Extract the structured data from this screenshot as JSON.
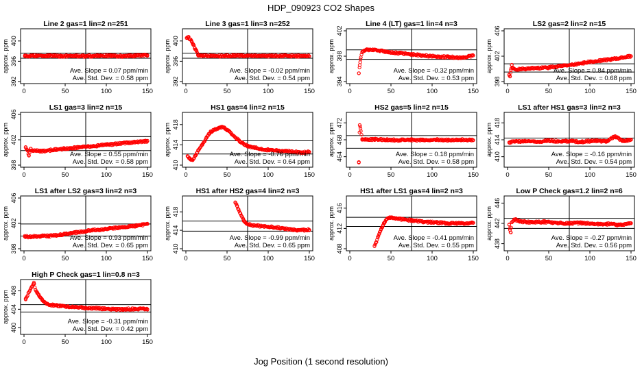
{
  "figure": {
    "title": "HDP_090923  CO2 Shapes",
    "xlabel": "Jog Position (1 second resolution)"
  },
  "chart_data": [
    {
      "type": "scatter",
      "title": "Line 2 gas=1 lin=2 n=251",
      "ylabel": "approx. ppm",
      "xlim": [
        0,
        150
      ],
      "ylim": [
        392,
        402
      ],
      "yticks": [
        392,
        396,
        400
      ],
      "xticks": [
        0,
        50,
        100,
        150
      ],
      "hlines": [
        396.6,
        397.6
      ],
      "vline": 75,
      "slope_text": "Ave. Slope =  0.07  ppm/min",
      "sd_text": "Ave. Std. Dev. =  0.58  ppm",
      "series": [
        {
          "x": [
            1,
            15,
            30,
            45,
            60,
            75,
            90,
            105,
            120,
            135,
            150
          ],
          "y": [
            397.0,
            397.1,
            397.1,
            397.0,
            397.1,
            397.0,
            397.1,
            397.1,
            397.0,
            397.1,
            397.2
          ]
        }
      ]
    },
    {
      "type": "scatter",
      "title": "Line 3 gas=1 lin=3 n=252",
      "ylabel": "approx. ppm",
      "xlim": [
        0,
        150
      ],
      "ylim": [
        392,
        402
      ],
      "yticks": [
        392,
        396,
        400
      ],
      "xticks": [
        0,
        50,
        100,
        150
      ],
      "hlines": [
        396.6,
        397.6
      ],
      "vline": 75,
      "slope_text": "Ave. Slope =  -0.02  ppm/min",
      "sd_text": "Ave. Std. Dev. =  0.54  ppm",
      "series": [
        {
          "x": [
            1,
            3,
            5,
            7,
            9,
            11,
            13,
            15,
            30,
            60,
            90,
            120,
            150
          ],
          "y": [
            400.6,
            400.8,
            400.3,
            399.9,
            399.2,
            398.6,
            398.0,
            397.1,
            397.0,
            397.1,
            397.0,
            397.1,
            397.0
          ]
        }
      ]
    },
    {
      "type": "scatter",
      "title": "Line 4 (LT) gas=1 lin=4 n=3",
      "ylabel": "approx. ppm",
      "xlim": [
        0,
        150
      ],
      "ylim": [
        394,
        402
      ],
      "yticks": [
        394,
        398,
        402
      ],
      "xticks": [
        0,
        50,
        100,
        150
      ],
      "hlines": [
        397.5,
        399.0
      ],
      "vline": 75,
      "slope_text": "Ave. Slope =  -0.32  ppm/min",
      "sd_text": "Ave. Std. Dev. =  0.53  ppm",
      "series": [
        {
          "x": [
            11,
            12,
            13,
            15,
            20,
            30,
            45,
            60,
            75,
            90,
            105,
            120,
            135,
            150
          ],
          "y": [
            395.3,
            396.6,
            397.5,
            398.6,
            399.0,
            399.0,
            398.7,
            398.5,
            398.3,
            398.1,
            397.9,
            397.9,
            397.7,
            398.1
          ]
        }
      ]
    },
    {
      "type": "scatter",
      "title": "LS2 gas=2 lin=2 n=15",
      "ylabel": "approx. ppm",
      "xlim": [
        0,
        150
      ],
      "ylim": [
        398,
        406
      ],
      "yticks": [
        398,
        402,
        406
      ],
      "xticks": [
        0,
        50,
        100,
        150
      ],
      "hlines": [
        399.5,
        400.8
      ],
      "vline": 75,
      "slope_text": "Ave. Slope =  0.84  ppm/min",
      "sd_text": "Ave. Std. Dev. =  0.68  ppm",
      "series": [
        {
          "x": [
            2,
            3,
            4,
            5,
            6,
            10,
            20,
            35,
            50,
            75,
            100,
            125,
            150
          ],
          "y": [
            399.0,
            398.8,
            399.8,
            400.6,
            400.2,
            399.9,
            400.0,
            400.1,
            400.2,
            400.6,
            401.1,
            401.5,
            402.0
          ]
        }
      ]
    },
    {
      "type": "scatter",
      "title": "LS1 gas=3 lin=2 n=15",
      "ylabel": "approx. ppm",
      "xlim": [
        0,
        150
      ],
      "ylim": [
        398,
        406
      ],
      "yticks": [
        398,
        402,
        406
      ],
      "xticks": [
        0,
        50,
        100,
        150
      ],
      "hlines": [
        400.3,
        402.5
      ],
      "vline": 75,
      "slope_text": "Ave. Slope =  0.55  ppm/min",
      "sd_text": "Ave. Std. Dev. =  0.58  ppm",
      "series": [
        {
          "x": [
            2,
            4,
            6,
            8,
            10,
            20,
            35,
            50,
            75,
            100,
            125,
            150
          ],
          "y": [
            400.8,
            400.4,
            399.5,
            400.6,
            400.3,
            400.2,
            400.4,
            400.6,
            400.9,
            401.2,
            401.5,
            401.8
          ]
        }
      ]
    },
    {
      "type": "scatter",
      "title": "HS1 gas=4 lin=2 n=15",
      "ylabel": "approx. ppm",
      "xlim": [
        0,
        150
      ],
      "ylim": [
        410,
        420
      ],
      "yticks": [
        410,
        414,
        418
      ],
      "xticks": [
        0,
        50,
        100,
        150
      ],
      "hlines": [
        412.2,
        414.8
      ],
      "vline": 75,
      "slope_text": "Ave. Slope =  -0.76  ppm/min",
      "sd_text": "Ave. Std. Dev. =  0.64  ppm",
      "series": [
        {
          "x": [
            2,
            5,
            8,
            12,
            15,
            20,
            25,
            30,
            35,
            40,
            45,
            50,
            55,
            60,
            65,
            70,
            75,
            85,
            100,
            120,
            140,
            150
          ],
          "y": [
            411.8,
            411.3,
            411.0,
            412.0,
            413.0,
            414.0,
            415.5,
            416.5,
            417.0,
            417.4,
            417.5,
            417.0,
            416.3,
            415.5,
            414.8,
            414.2,
            413.8,
            413.4,
            413.0,
            412.8,
            412.5,
            412.6
          ]
        }
      ]
    },
    {
      "type": "scatter",
      "title": "HS2 gas=5 lin=2 n=15",
      "ylabel": "approx. ppm",
      "xlim": [
        0,
        150
      ],
      "ylim": [
        462,
        474
      ],
      "yticks": [
        464,
        468,
        472
      ],
      "xticks": [
        0,
        50,
        100,
        150
      ],
      "hlines": [
        466.0,
        469.0
      ],
      "vline": 75,
      "slope_text": "Ave. Slope =  0.18  ppm/min",
      "sd_text": "Ave. Std. Dev. =  0.58  ppm",
      "series": [
        {
          "x": [
            11,
            12,
            13,
            15,
            20,
            30,
            45,
            60,
            75,
            90,
            105,
            120,
            135,
            150
          ],
          "y": [
            462.6,
            471.5,
            470.6,
            468.0,
            468.0,
            468.1,
            468.0,
            467.9,
            468.0,
            467.9,
            468.0,
            467.9,
            468.0,
            467.9
          ]
        }
      ]
    },
    {
      "type": "scatter",
      "title": "LS1 after HS1 gas=3 lin=2 n=3",
      "ylabel": "approx. ppm",
      "xlim": [
        0,
        150
      ],
      "ylim": [
        408,
        420
      ],
      "yticks": [
        410,
        414,
        418
      ],
      "xticks": [
        0,
        50,
        100,
        150
      ],
      "hlines": [
        412.5,
        414.4
      ],
      "vline": 75,
      "slope_text": "Ave. Slope =  -0.16  ppm/min",
      "sd_text": "Ave. Std. Dev. =  0.54  ppm",
      "series": [
        {
          "x": [
            2,
            10,
            20,
            35,
            50,
            65,
            75,
            90,
            105,
            120,
            130,
            140,
            150
          ],
          "y": [
            413.4,
            413.6,
            413.7,
            413.5,
            413.8,
            413.6,
            413.7,
            413.5,
            413.8,
            413.6,
            414.8,
            413.7,
            414.0
          ]
        }
      ]
    },
    {
      "type": "scatter",
      "title": "LS1 after LS2 gas=3 lin=2 n=3",
      "ylabel": "approx. ppm",
      "xlim": [
        0,
        150
      ],
      "ylim": [
        398,
        406
      ],
      "yticks": [
        398,
        402,
        406
      ],
      "xticks": [
        0,
        50,
        100,
        150
      ],
      "hlines": [
        400.0,
        401.9
      ],
      "vline": 75,
      "slope_text": "Ave. Slope =  0.93  ppm/min",
      "sd_text": "Ave. Std. Dev. =  0.65  ppm",
      "series": [
        {
          "x": [
            1,
            10,
            20,
            30,
            45,
            60,
            75,
            90,
            105,
            120,
            135,
            150
          ],
          "y": [
            399.9,
            399.9,
            400.0,
            400.0,
            400.2,
            400.5,
            400.8,
            401.0,
            401.2,
            401.4,
            401.6,
            401.9
          ]
        }
      ]
    },
    {
      "type": "scatter",
      "title": "HS1 after HS2 gas=4 lin=2 n=3",
      "ylabel": "approx. ppm",
      "xlim": [
        0,
        150
      ],
      "ylim": [
        410,
        421
      ],
      "yticks": [
        410,
        414,
        418
      ],
      "xticks": [
        0,
        50,
        100,
        150
      ],
      "hlines": [
        413.8,
        416.0
      ],
      "vline": 75,
      "slope_text": "Ave. Slope =  -0.99  ppm/min",
      "sd_text": "Ave. Std. Dev. =  0.65  ppm",
      "series": [
        {
          "x": [
            60,
            62,
            64,
            66,
            68,
            70,
            72,
            75,
            85,
            100,
            120,
            135,
            150
          ],
          "y": [
            420.0,
            419.3,
            418.5,
            417.7,
            417.0,
            416.3,
            415.7,
            415.3,
            415.0,
            414.8,
            414.4,
            414.0,
            414.1
          ]
        }
      ]
    },
    {
      "type": "scatter",
      "title": "HS1 after LS1 gas=4 lin=2 n=3",
      "ylabel": "approx. ppm",
      "xlim": [
        0,
        150
      ],
      "ylim": [
        408,
        418
      ],
      "yticks": [
        408,
        412,
        416
      ],
      "xticks": [
        0,
        50,
        100,
        150
      ],
      "hlines": [
        412.4,
        414.2
      ],
      "vline": 75,
      "slope_text": "Ave. Slope =  -0.41  ppm/min",
      "sd_text": "Ave. Std. Dev. =  0.55  ppm",
      "series": [
        {
          "x": [
            30,
            32,
            34,
            36,
            38,
            40,
            42,
            45,
            50,
            60,
            75,
            90,
            105,
            120,
            135,
            150
          ],
          "y": [
            408.5,
            409.3,
            410.2,
            411.0,
            411.8,
            412.5,
            413.2,
            413.8,
            414.2,
            413.9,
            413.6,
            413.3,
            413.2,
            413.0,
            413.0,
            413.1
          ]
        }
      ]
    },
    {
      "type": "scatter",
      "title": "Low P Check gas=1.2 lin=2 n=6",
      "ylabel": "approx. ppm",
      "xlim": [
        0,
        150
      ],
      "ylim": [
        437,
        447
      ],
      "yticks": [
        438,
        442,
        446
      ],
      "xticks": [
        0,
        50,
        100,
        150
      ],
      "hlines": [
        441.0,
        443.0
      ],
      "vline": 75,
      "slope_text": "Ave. Slope =  -0.27  ppm/min",
      "sd_text": "Ave. Std. Dev. =  0.56  ppm",
      "series": [
        {
          "x": [
            2,
            3,
            4,
            5,
            8,
            15,
            30,
            45,
            60,
            75,
            90,
            105,
            120,
            135,
            150
          ],
          "y": [
            441.8,
            440.7,
            440.2,
            442.2,
            442.8,
            442.4,
            442.2,
            442.3,
            442.1,
            442.0,
            442.1,
            441.9,
            441.9,
            441.7,
            442.0
          ]
        }
      ]
    },
    {
      "type": "scatter",
      "title": "High P Check gas=1 lin=0.8 n=3",
      "ylabel": "approx. ppm",
      "xlim": [
        0,
        150
      ],
      "ylim": [
        399,
        410
      ],
      "yticks": [
        400,
        404,
        408
      ],
      "xticks": [
        0,
        50,
        100,
        150
      ],
      "hlines": [
        403.4,
        405.0
      ],
      "vline": 75,
      "slope_text": "Ave. Slope =  -0.31  ppm/min",
      "sd_text": "Ave. Std. Dev. =  0.42  ppm",
      "series": [
        {
          "x": [
            2,
            12,
            14,
            16,
            18,
            20,
            22,
            25,
            30,
            40,
            50,
            60,
            75,
            90,
            105,
            120,
            135,
            150
          ],
          "y": [
            406.3,
            409.8,
            408.2,
            407.5,
            407.0,
            406.5,
            406.0,
            405.5,
            405.0,
            404.8,
            404.6,
            404.5,
            404.3,
            404.2,
            404.0,
            404.0,
            404.1,
            404.0
          ]
        }
      ]
    }
  ]
}
